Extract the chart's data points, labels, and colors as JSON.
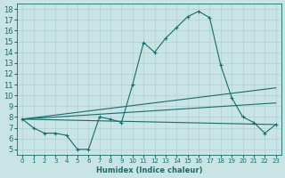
{
  "xlabel": "Humidex (Indice chaleur)",
  "xlim": [
    -0.5,
    23.5
  ],
  "ylim": [
    4.5,
    18.5
  ],
  "yticks": [
    5,
    6,
    7,
    8,
    9,
    10,
    11,
    12,
    13,
    14,
    15,
    16,
    17,
    18
  ],
  "xticks": [
    0,
    1,
    2,
    3,
    4,
    5,
    6,
    7,
    8,
    9,
    10,
    11,
    12,
    13,
    14,
    15,
    16,
    17,
    18,
    19,
    20,
    21,
    22,
    23
  ],
  "bg_color": "#c8e4e4",
  "line_color": "#1a6b6b",
  "grid_color": "#b0d0d0",
  "main_line": {
    "x": [
      0,
      1,
      2,
      3,
      4,
      5,
      6,
      7,
      8,
      9,
      10,
      11,
      12,
      13,
      14,
      15,
      16,
      17,
      18,
      19,
      20,
      21,
      22,
      23
    ],
    "y": [
      7.8,
      7.0,
      6.5,
      6.5,
      6.3,
      5.0,
      5.0,
      8.0,
      7.8,
      7.5,
      11.0,
      14.9,
      14.0,
      15.3,
      16.3,
      17.3,
      17.8,
      17.2,
      12.8,
      9.8,
      8.0,
      7.5,
      6.5,
      7.3
    ]
  },
  "trend_lines": [
    {
      "x": [
        0,
        23
      ],
      "y": [
        7.8,
        10.7
      ]
    },
    {
      "x": [
        0,
        23
      ],
      "y": [
        7.8,
        9.3
      ]
    },
    {
      "x": [
        0,
        23
      ],
      "y": [
        7.8,
        7.3
      ]
    }
  ]
}
